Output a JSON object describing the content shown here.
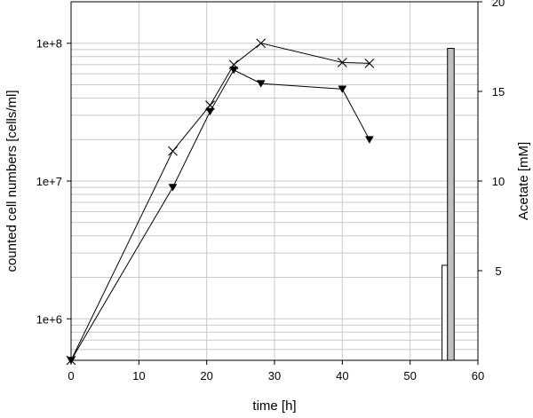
{
  "chart_data": {
    "type": "line",
    "title": "",
    "xlabel": "time [h]",
    "ylabel": "counted cell numbers [cells/ml]",
    "y2label": "Acetate [mM]",
    "xlim": [
      0,
      60
    ],
    "ylim": [
      500000,
      200000000
    ],
    "yscale": "log",
    "y2lim": [
      0,
      20
    ],
    "grid": true,
    "legend": "none",
    "x_ticks": [
      "0",
      "10",
      "20",
      "30",
      "40",
      "50",
      "60"
    ],
    "y_ticks": [
      {
        "value": 1000000,
        "label": "1e+6"
      },
      {
        "value": 10000000,
        "label": "1e+7"
      },
      {
        "value": 100000000,
        "label": "1e+8"
      }
    ],
    "y2_ticks": [
      "5",
      "10",
      "15",
      "20"
    ],
    "series": [
      {
        "marker": "x",
        "x": [
          0,
          15,
          20.5,
          24,
          28,
          40,
          44
        ],
        "y": [
          500000,
          16500000,
          35500000,
          70000000,
          100000000,
          72500000,
          71500000
        ]
      },
      {
        "marker": "triangle-down",
        "x": [
          0,
          15,
          20.5,
          24,
          28,
          40,
          44
        ],
        "y": [
          500000,
          9000000,
          32000000,
          64000000,
          51000000,
          46500000,
          20000000
        ]
      }
    ],
    "bars": {
      "axis": "secondary",
      "items": [
        {
          "x": 55.2,
          "value": 5.3,
          "fill": "#ffffff"
        },
        {
          "x": 56.0,
          "value": 17.4,
          "fill": "#c0c0c0"
        }
      ]
    }
  }
}
